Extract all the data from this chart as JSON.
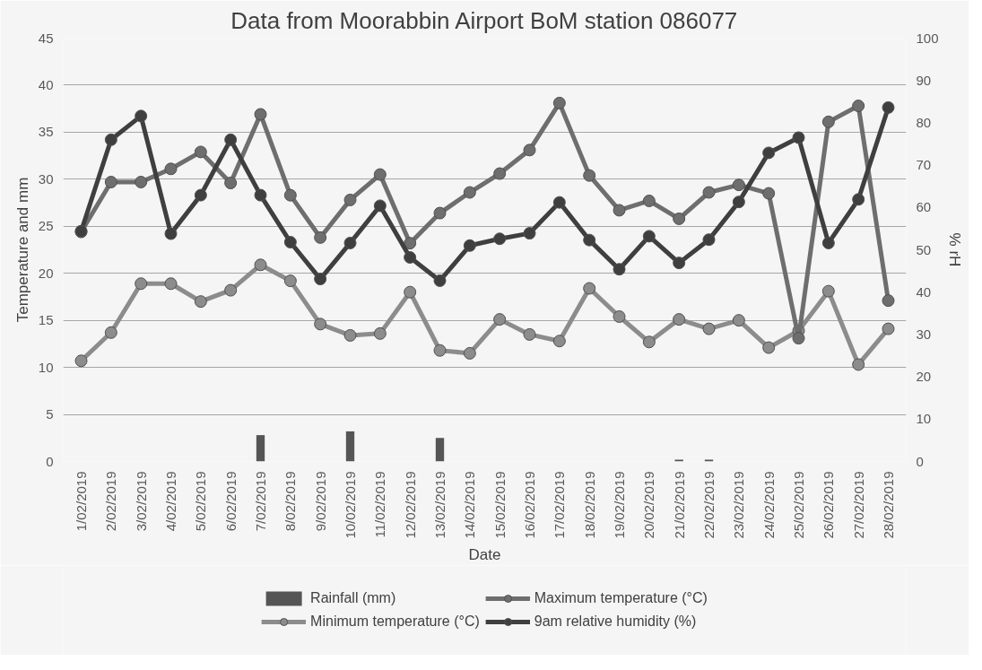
{
  "chart_data": {
    "type": "line",
    "title": "Data from Moorabbin Airport BoM station 086077",
    "xlabel": "Date",
    "ylabel": "Temperature and mm",
    "y2label": "% rH",
    "categories": [
      "1/02/2019",
      "2/02/2019",
      "3/02/2019",
      "4/02/2019",
      "5/02/2019",
      "6/02/2019",
      "7/02/2019",
      "8/02/2019",
      "9/02/2019",
      "10/02/2019",
      "11/02/2019",
      "12/02/2019",
      "13/02/2019",
      "14/02/2019",
      "15/02/2019",
      "16/02/2019",
      "17/02/2019",
      "18/02/2019",
      "19/02/2019",
      "20/02/2019",
      "21/02/2019",
      "22/02/2019",
      "23/02/2019",
      "24/02/2019",
      "25/02/2019",
      "26/02/2019",
      "27/02/2019",
      "28/02/2019"
    ],
    "series": [
      {
        "name": "Rainfall (mm)",
        "type": "bar",
        "color": "#555555",
        "values": [
          0,
          0,
          0,
          0,
          0,
          0,
          2.8,
          0,
          0,
          3.2,
          0,
          0,
          2.5,
          0,
          0,
          0,
          0,
          0,
          0,
          0,
          0.2,
          0.2,
          0,
          0,
          0,
          0,
          0,
          0
        ]
      },
      {
        "name": "Minimum temperature (°C)",
        "color": "#8c8c8c",
        "values": [
          10.7,
          13.7,
          18.9,
          18.9,
          17,
          18.2,
          20.9,
          19.2,
          14.6,
          13.4,
          13.6,
          18,
          11.8,
          11.5,
          15.1,
          13.5,
          12.8,
          18.4,
          15.4,
          12.7,
          15.1,
          14.1,
          15,
          12.1,
          13.9,
          18.1,
          10.3,
          14.1
        ]
      },
      {
        "name": "Maximum temperature (°C)",
        "color": "#6e6e6e",
        "values": [
          24.4,
          29.7,
          29.7,
          31.1,
          32.9,
          29.6,
          36.9,
          28.3,
          23.8,
          27.8,
          30.5,
          23.2,
          26.4,
          28.6,
          30.6,
          33.1,
          38.1,
          30.4,
          26.7,
          27.7,
          25.8,
          28.6,
          29.4,
          28.5,
          13.1,
          36.1,
          37.8,
          17.1
        ]
      },
      {
        "name": "9am relative humidity (%)",
        "axis": "y2",
        "color": "#3f3f3f",
        "values": [
          54.4,
          76,
          81.6,
          53.8,
          62.9,
          76,
          62.9,
          51.8,
          43.1,
          51.6,
          60.4,
          48.2,
          42.7,
          51,
          52.6,
          53.9,
          61.2,
          52.3,
          45.4,
          53.2,
          46.9,
          52.4,
          61.3,
          72.9,
          76.5,
          51.6,
          61.9,
          83.6
        ]
      }
    ],
    "ylim": [
      0,
      45
    ],
    "yticks": [
      0,
      5,
      10,
      15,
      20,
      25,
      30,
      35,
      40,
      45
    ],
    "y2lim": [
      0,
      100
    ],
    "y2ticks": [
      0,
      10,
      20,
      30,
      40,
      50,
      60,
      70,
      80,
      90,
      100
    ],
    "grid": "y",
    "legend": "bottom",
    "marker": "circle",
    "line_style": "solid"
  }
}
